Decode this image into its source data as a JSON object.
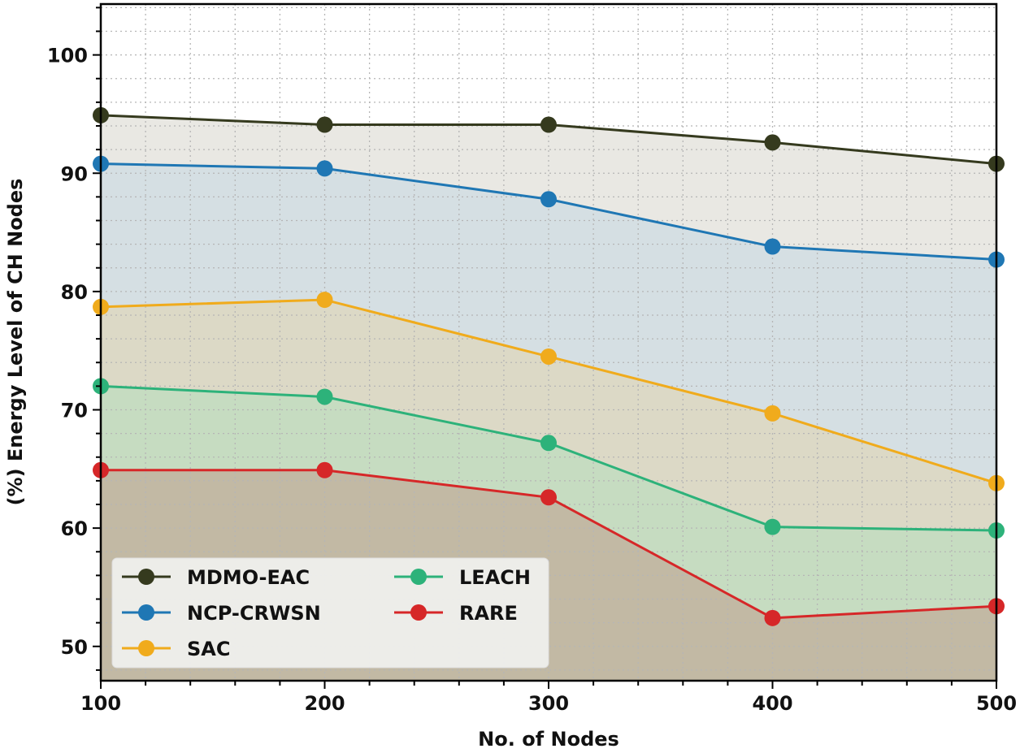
{
  "chart_data": {
    "type": "area",
    "title": "",
    "xlabel": "No. of Nodes",
    "ylabel": "(%) Energy Level of CH Nodes",
    "x": [
      100,
      200,
      300,
      400,
      500
    ],
    "xlim": [
      100,
      500
    ],
    "ylim": [
      47.1,
      104.3
    ],
    "xticks": [
      100,
      200,
      300,
      400,
      500
    ],
    "yticks": [
      50,
      60,
      70,
      80,
      90,
      100
    ],
    "x_minor_step": 20,
    "y_minor_step": 2,
    "grid": true,
    "legend_placement": "lower-left",
    "series": [
      {
        "name": "MDMO-EAC",
        "values": [
          94.9,
          94.1,
          94.1,
          92.6,
          90.8
        ],
        "color": "#353a1e",
        "fill": "#e9e8e3"
      },
      {
        "name": "NCP-CRWSN",
        "values": [
          90.8,
          90.4,
          87.8,
          83.8,
          82.7
        ],
        "color": "#1f77b4",
        "fill": "#d5dfe3"
      },
      {
        "name": "SAC",
        "values": [
          78.7,
          79.3,
          74.5,
          69.7,
          63.8
        ],
        "color": "#f0ab1c",
        "fill": "#dcd9c6"
      },
      {
        "name": "LEACH",
        "values": [
          72.0,
          71.1,
          67.2,
          60.1,
          59.8
        ],
        "color": "#2db27a",
        "fill": "#c6dcc1"
      },
      {
        "name": "RARE",
        "values": [
          64.9,
          64.9,
          62.6,
          52.4,
          53.4
        ],
        "color": "#d62728",
        "fill": "#c2b9a4"
      }
    ]
  }
}
